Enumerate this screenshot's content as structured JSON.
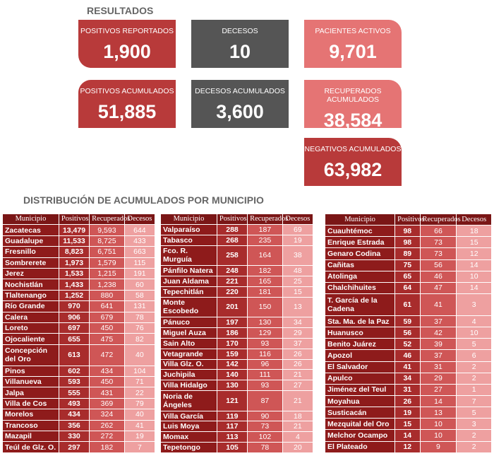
{
  "header": {
    "title": "RESULTADOS"
  },
  "cards": [
    {
      "label": "POSITIVOS REPORTADOS",
      "value": "1,900"
    },
    {
      "label": "DECESOS",
      "value": "10"
    },
    {
      "label": "PACIENTES ACTIVOS",
      "value": "9,701"
    },
    {
      "label": "POSITIVOS ACUMULADOS",
      "value": "51,885"
    },
    {
      "label": "DECESOS ACUMULADOS",
      "value": "3,600"
    },
    {
      "label": "RECUPERADOS ACUMULADOS",
      "value": "38,584"
    },
    {
      "label": "NEGATIVOS ACUMULADOS",
      "value": "63,982"
    }
  ],
  "section": {
    "title": "DISTRIBUCIÓN DE ACUMULADOS POR MUNICIPIO"
  },
  "tables": [
    {
      "header": [
        "Municipio",
        "Positivos",
        "Recuperados",
        "Decesos"
      ],
      "rows": [
        [
          "Zacatecas",
          "13,479",
          "9,593",
          "644"
        ],
        [
          "Guadalupe",
          "11,533",
          "8,725",
          "433"
        ],
        [
          "Fresnillo",
          "8,823",
          "6,751",
          "663"
        ],
        [
          "Sombrerete",
          "1,973",
          "1,579",
          "115"
        ],
        [
          "Jerez",
          "1,533",
          "1,215",
          "191"
        ],
        [
          "Nochistlán",
          "1,433",
          "1,238",
          "60"
        ],
        [
          "Tlaltenango",
          "1,252",
          "880",
          "58"
        ],
        [
          "Río Grande",
          "970",
          "641",
          "131"
        ],
        [
          "Calera",
          "906",
          "679",
          "78"
        ],
        [
          "Loreto",
          "697",
          "450",
          "76"
        ],
        [
          "Ojocaliente",
          "655",
          "475",
          "82"
        ],
        [
          "Concepción del Oro",
          "613",
          "472",
          "40"
        ],
        [
          "Pinos",
          "602",
          "434",
          "104"
        ],
        [
          "Villanueva",
          "593",
          "450",
          "71"
        ],
        [
          "Jalpa",
          "555",
          "431",
          "22"
        ],
        [
          "Villa de Cos",
          "493",
          "369",
          "79"
        ],
        [
          "Morelos",
          "434",
          "324",
          "40"
        ],
        [
          "Trancoso",
          "356",
          "262",
          "41"
        ],
        [
          "Mazapil",
          "330",
          "272",
          "19"
        ],
        [
          "Teúl de Glz. O.",
          "297",
          "182",
          "7"
        ]
      ]
    },
    {
      "header": [
        "Municipio",
        "Positivos",
        "Recuperados",
        "Decesos"
      ],
      "rows": [
        [
          "Valparaíso",
          "288",
          "187",
          "69"
        ],
        [
          "Tabasco",
          "268",
          "235",
          "19"
        ],
        [
          "Fco. R. Murguía",
          "258",
          "164",
          "38"
        ],
        [
          "Pánfilo Natera",
          "248",
          "182",
          "48"
        ],
        [
          "Juan Aldama",
          "221",
          "165",
          "25"
        ],
        [
          "Tepechitlán",
          "220",
          "181",
          "15"
        ],
        [
          "Monte Escobedo",
          "201",
          "150",
          "13"
        ],
        [
          "Pánuco",
          "197",
          "130",
          "34"
        ],
        [
          "Miguel Auza",
          "186",
          "129",
          "29"
        ],
        [
          "Sain Alto",
          "170",
          "93",
          "37"
        ],
        [
          "Vetagrande",
          "159",
          "116",
          "26"
        ],
        [
          "Villa Glz. O.",
          "142",
          "96",
          "26"
        ],
        [
          "Juchipila",
          "140",
          "111",
          "21"
        ],
        [
          "Villa Hidalgo",
          "130",
          "93",
          "27"
        ],
        [
          "Noria de Ángeles",
          "121",
          "87",
          "21"
        ],
        [
          "Villa García",
          "119",
          "90",
          "18"
        ],
        [
          "Luis Moya",
          "117",
          "73",
          "21"
        ],
        [
          "Momax",
          "113",
          "102",
          "4"
        ],
        [
          "Tepetongo",
          "105",
          "78",
          "20"
        ]
      ]
    },
    {
      "header": [
        "Municipio",
        "Positivos",
        "Recuperados",
        "Decesos"
      ],
      "rows": [
        [
          "Cuauhtémoc",
          "98",
          "66",
          "18"
        ],
        [
          "Enrique Estrada",
          "98",
          "73",
          "15"
        ],
        [
          "Genaro Codina",
          "89",
          "73",
          "12"
        ],
        [
          "Cañitas",
          "75",
          "56",
          "14"
        ],
        [
          "Atolinga",
          "65",
          "46",
          "10"
        ],
        [
          "Chalchihuites",
          "64",
          "47",
          "14"
        ],
        [
          "T. García de la Cadena",
          "61",
          "41",
          "3"
        ],
        [
          "Sta. Ma. de la Paz",
          "59",
          "37",
          "4"
        ],
        [
          "Huanusco",
          "56",
          "42",
          "10"
        ],
        [
          "Benito Juárez",
          "52",
          "39",
          "5"
        ],
        [
          "Apozol",
          "46",
          "37",
          "6"
        ],
        [
          "El Salvador",
          "41",
          "31",
          "2"
        ],
        [
          "Apulco",
          "34",
          "29",
          "2"
        ],
        [
          "Jiménez del Teul",
          "31",
          "27",
          "1"
        ],
        [
          "Moyahua",
          "26",
          "14",
          "7"
        ],
        [
          "Susticacán",
          "19",
          "13",
          "5"
        ],
        [
          "Mezquital del Oro",
          "15",
          "10",
          "3"
        ],
        [
          "Melchor Ocampo",
          "14",
          "10",
          "2"
        ],
        [
          "El Plateado",
          "12",
          "9",
          "2"
        ]
      ]
    }
  ]
}
